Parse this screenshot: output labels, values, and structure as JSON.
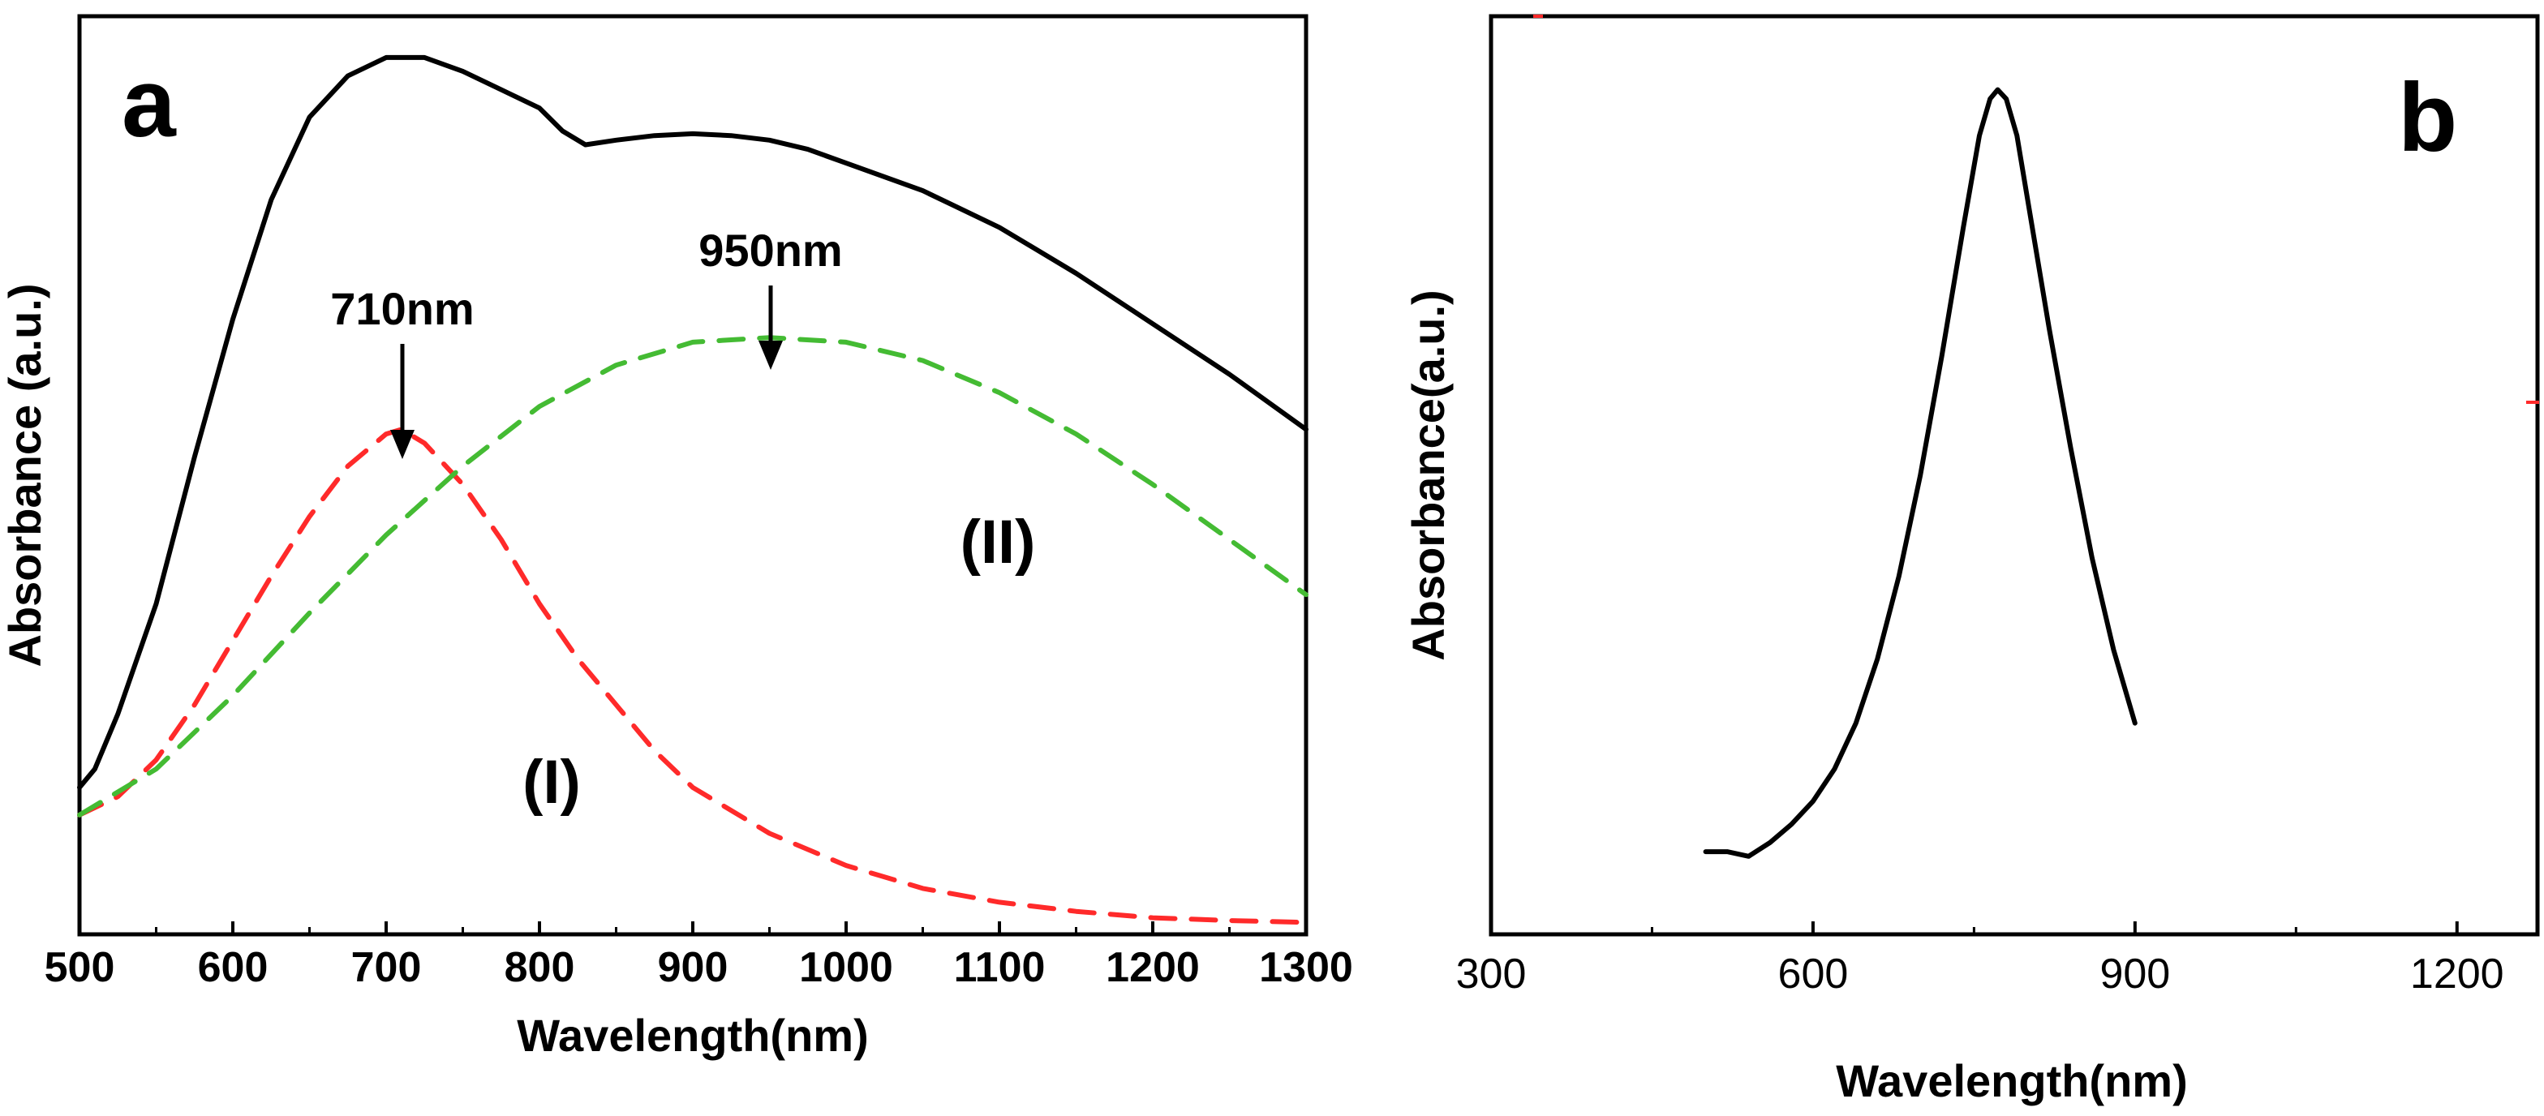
{
  "chart_data": [
    {
      "panel": "a",
      "type": "line",
      "xlabel": "Wavelength(nm)",
      "ylabel": "Absorbance (a.u.)",
      "xlim": [
        500,
        1300
      ],
      "ylim": [
        0,
        1.0
      ],
      "xticks": [
        500,
        600,
        700,
        800,
        900,
        1000,
        1100,
        1200,
        1300
      ],
      "series": [
        {
          "name": "measured",
          "color": "#000000",
          "style": "solid",
          "points": [
            [
              500,
              0.16
            ],
            [
              510,
              0.18
            ],
            [
              525,
              0.24
            ],
            [
              550,
              0.36
            ],
            [
              575,
              0.52
            ],
            [
              600,
              0.67
            ],
            [
              625,
              0.8
            ],
            [
              650,
              0.89
            ],
            [
              675,
              0.935
            ],
            [
              700,
              0.955
            ],
            [
              725,
              0.955
            ],
            [
              750,
              0.94
            ],
            [
              775,
              0.92
            ],
            [
              800,
              0.9
            ],
            [
              815,
              0.875
            ],
            [
              830,
              0.86
            ],
            [
              850,
              0.865
            ],
            [
              875,
              0.87
            ],
            [
              900,
              0.872
            ],
            [
              925,
              0.87
            ],
            [
              950,
              0.865
            ],
            [
              975,
              0.855
            ],
            [
              1000,
              0.84
            ],
            [
              1050,
              0.81
            ],
            [
              1100,
              0.77
            ],
            [
              1150,
              0.72
            ],
            [
              1200,
              0.665
            ],
            [
              1250,
              0.61
            ],
            [
              1300,
              0.55
            ]
          ]
        },
        {
          "name": "(I)",
          "color": "#ff2a2a",
          "style": "dashed",
          "points": [
            [
              500,
              0.13
            ],
            [
              525,
              0.15
            ],
            [
              550,
              0.19
            ],
            [
              575,
              0.25
            ],
            [
              600,
              0.32
            ],
            [
              625,
              0.39
            ],
            [
              650,
              0.455
            ],
            [
              675,
              0.51
            ],
            [
              700,
              0.545
            ],
            [
              710,
              0.55
            ],
            [
              725,
              0.535
            ],
            [
              750,
              0.49
            ],
            [
              775,
              0.43
            ],
            [
              800,
              0.36
            ],
            [
              825,
              0.3
            ],
            [
              850,
              0.25
            ],
            [
              875,
              0.2
            ],
            [
              900,
              0.16
            ],
            [
              950,
              0.11
            ],
            [
              1000,
              0.075
            ],
            [
              1050,
              0.05
            ],
            [
              1100,
              0.035
            ],
            [
              1150,
              0.025
            ],
            [
              1200,
              0.018
            ],
            [
              1250,
              0.015
            ],
            [
              1300,
              0.013
            ]
          ]
        },
        {
          "name": "(II)",
          "color": "#44bb33",
          "style": "dashed",
          "points": [
            [
              500,
              0.13
            ],
            [
              550,
              0.18
            ],
            [
              600,
              0.26
            ],
            [
              650,
              0.35
            ],
            [
              700,
              0.435
            ],
            [
              750,
              0.51
            ],
            [
              800,
              0.575
            ],
            [
              850,
              0.62
            ],
            [
              900,
              0.645
            ],
            [
              950,
              0.65
            ],
            [
              1000,
              0.645
            ],
            [
              1050,
              0.625
            ],
            [
              1100,
              0.59
            ],
            [
              1150,
              0.545
            ],
            [
              1200,
              0.49
            ],
            [
              1250,
              0.43
            ],
            [
              1300,
              0.37
            ]
          ]
        }
      ],
      "annotations": [
        {
          "text": "710nm",
          "x": 710,
          "y": 0.55
        },
        {
          "text": "950nm",
          "x": 950,
          "y": 0.65
        }
      ],
      "curve_labels": [
        {
          "text": "(I)",
          "x": 840,
          "y": 0.19
        },
        {
          "text": "(II)",
          "x": 1080,
          "y": 0.53
        }
      ]
    },
    {
      "panel": "b",
      "type": "line",
      "xlabel": "Wavelength(nm)",
      "ylabel": "Absorbance(a.u.)",
      "xlim": [
        300,
        1275
      ],
      "ylim": [
        0,
        1.0
      ],
      "xticks": [
        300,
        600,
        900,
        1200
      ],
      "series": [
        {
          "name": "spectrum",
          "color": "#000000",
          "style": "solid",
          "points": [
            [
              500,
              0.09
            ],
            [
              520,
              0.09
            ],
            [
              540,
              0.085
            ],
            [
              560,
              0.1
            ],
            [
              580,
              0.12
            ],
            [
              600,
              0.145
            ],
            [
              620,
              0.18
            ],
            [
              640,
              0.23
            ],
            [
              660,
              0.3
            ],
            [
              680,
              0.39
            ],
            [
              700,
              0.5
            ],
            [
              720,
              0.63
            ],
            [
              740,
              0.77
            ],
            [
              755,
              0.87
            ],
            [
              765,
              0.91
            ],
            [
              772,
              0.92
            ],
            [
              780,
              0.91
            ],
            [
              790,
              0.87
            ],
            [
              800,
              0.8
            ],
            [
              820,
              0.66
            ],
            [
              840,
              0.53
            ],
            [
              860,
              0.41
            ],
            [
              880,
              0.31
            ],
            [
              900,
              0.23
            ]
          ]
        }
      ]
    }
  ],
  "panels": {
    "a": {
      "letter": "a",
      "xlabel": "Wavelength(nm)",
      "ylabel": "Absorbance (a.u.)",
      "tick_labels": [
        "500",
        "600",
        "700",
        "800",
        "900",
        "1000",
        "1100",
        "1200",
        "1300"
      ],
      "anno_710": "710nm",
      "anno_950": "950nm",
      "label_I": "(I)",
      "label_II": "(II)"
    },
    "b": {
      "letter": "b",
      "xlabel": "Wavelength(nm)",
      "ylabel": "Absorbance(a.u.)",
      "tick_labels": [
        "300",
        "600",
        "900",
        "1200"
      ]
    }
  },
  "colors": {
    "measured": "#000000",
    "curve_I": "#ff2a2a",
    "curve_II": "#44bb33",
    "stray_mark": "#ff2a2a"
  }
}
